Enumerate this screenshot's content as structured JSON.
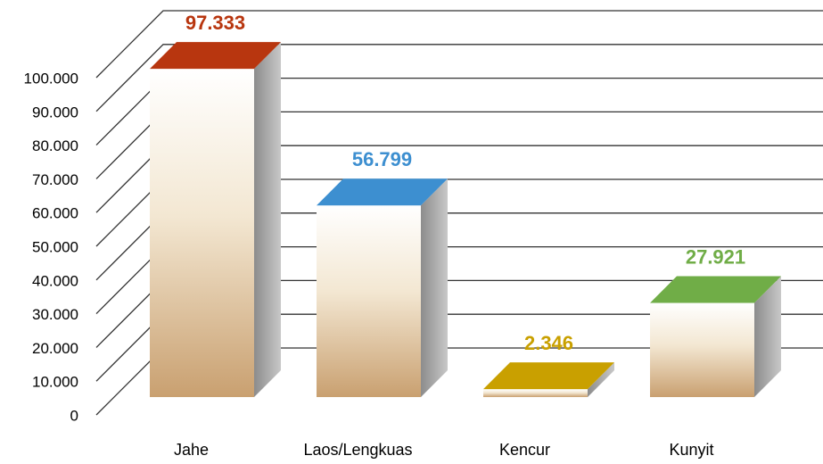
{
  "chart_data": {
    "type": "bar3d",
    "categories": [
      "Jahe",
      "Laos/Lengkuas",
      "Kencur",
      "Kunyit"
    ],
    "values": [
      97333,
      56799,
      2346,
      27921
    ],
    "value_labels": [
      "97.333",
      "56.799",
      "2.346",
      "27.921"
    ],
    "colors": [
      "#b8360f",
      "#3d8fd0",
      "#c9a000",
      "#70ad47"
    ],
    "ylim": [
      0,
      100000
    ],
    "yticks": [
      {
        "value": 0,
        "label": "0"
      },
      {
        "value": 10000,
        "label": "10.000"
      },
      {
        "value": 20000,
        "label": "20.000"
      },
      {
        "value": 30000,
        "label": "30.000"
      },
      {
        "value": 40000,
        "label": "40.000"
      },
      {
        "value": 50000,
        "label": "50.000"
      },
      {
        "value": 60000,
        "label": "60.000"
      },
      {
        "value": 70000,
        "label": "70.000"
      },
      {
        "value": 80000,
        "label": "80.000"
      },
      {
        "value": 90000,
        "label": "90.000"
      },
      {
        "value": 100000,
        "label": "100.000"
      }
    ],
    "grid": true
  }
}
